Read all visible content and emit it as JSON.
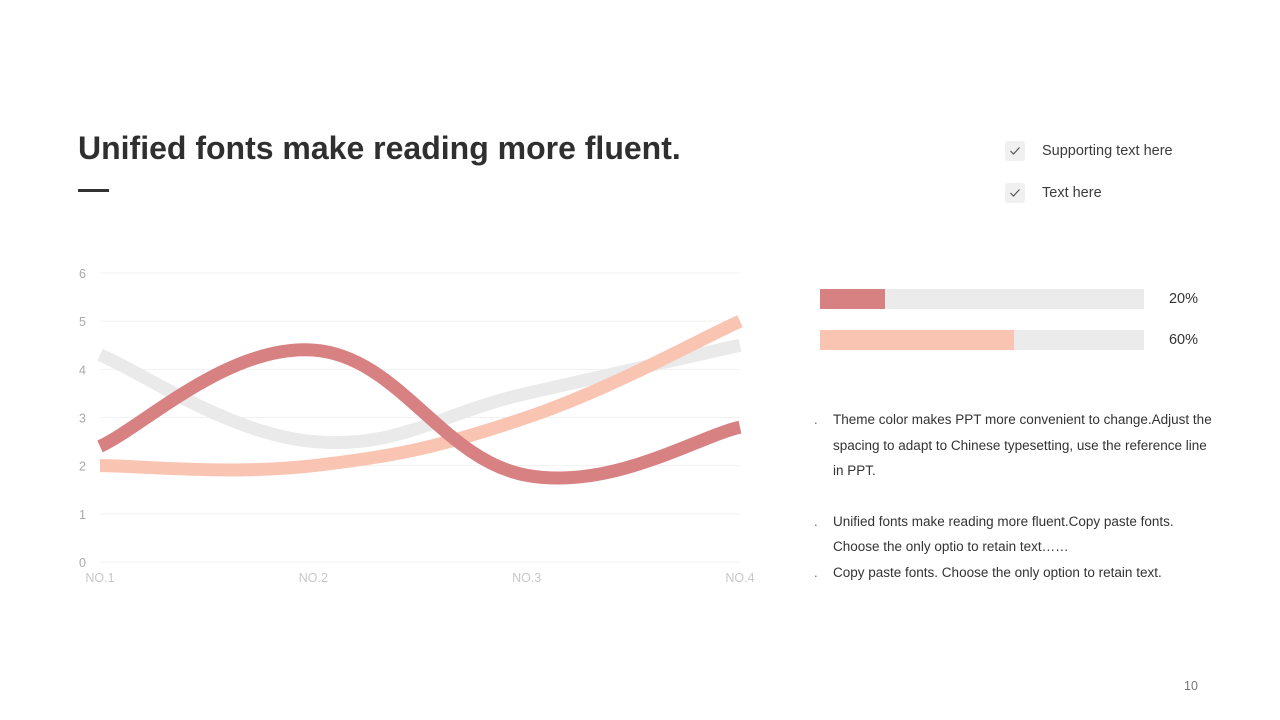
{
  "slide": {
    "title": "Unified fonts make reading more fluent.",
    "page_number": "10"
  },
  "checklist": [
    {
      "label": "Supporting text here",
      "icon": "check-icon"
    },
    {
      "label": "Text here",
      "icon": "check-icon"
    }
  ],
  "progress_bars": [
    {
      "label": "20%",
      "value": 0.2,
      "color": "#d88183"
    },
    {
      "label": "60%",
      "value": 0.6,
      "color": "#f9c4b2"
    }
  ],
  "notes": [
    {
      "text": "Theme  color makes PPT more convenient to change.Adjust  the spacing to adapt to Chinese typesetting, use the reference line in PPT."
    },
    {
      "text": "Unified fonts make reading more fluent.Copy paste fonts. Choose the only optio to retain text……"
    },
    {
      "text": "Copy paste  fonts. Choose the only option to retain text."
    }
  ],
  "chart_data": {
    "type": "line",
    "smooth": true,
    "categories": [
      "NO.1",
      "NO.2",
      "NO.3",
      "NO.4"
    ],
    "ylim": [
      0,
      6
    ],
    "yticks": [
      "0",
      "1",
      "2",
      "3",
      "4",
      "5",
      "6"
    ],
    "grid": true,
    "legend": "none",
    "series": [
      {
        "values": [
          4.3,
          2.5,
          3.5,
          4.5
        ],
        "color": "#eaeaea"
      },
      {
        "values": [
          2.0,
          2.0,
          3.0,
          5.0
        ],
        "color": "#f9c4b2"
      },
      {
        "values": [
          2.4,
          4.4,
          1.8,
          2.8
        ],
        "color": "#d88183"
      }
    ]
  }
}
